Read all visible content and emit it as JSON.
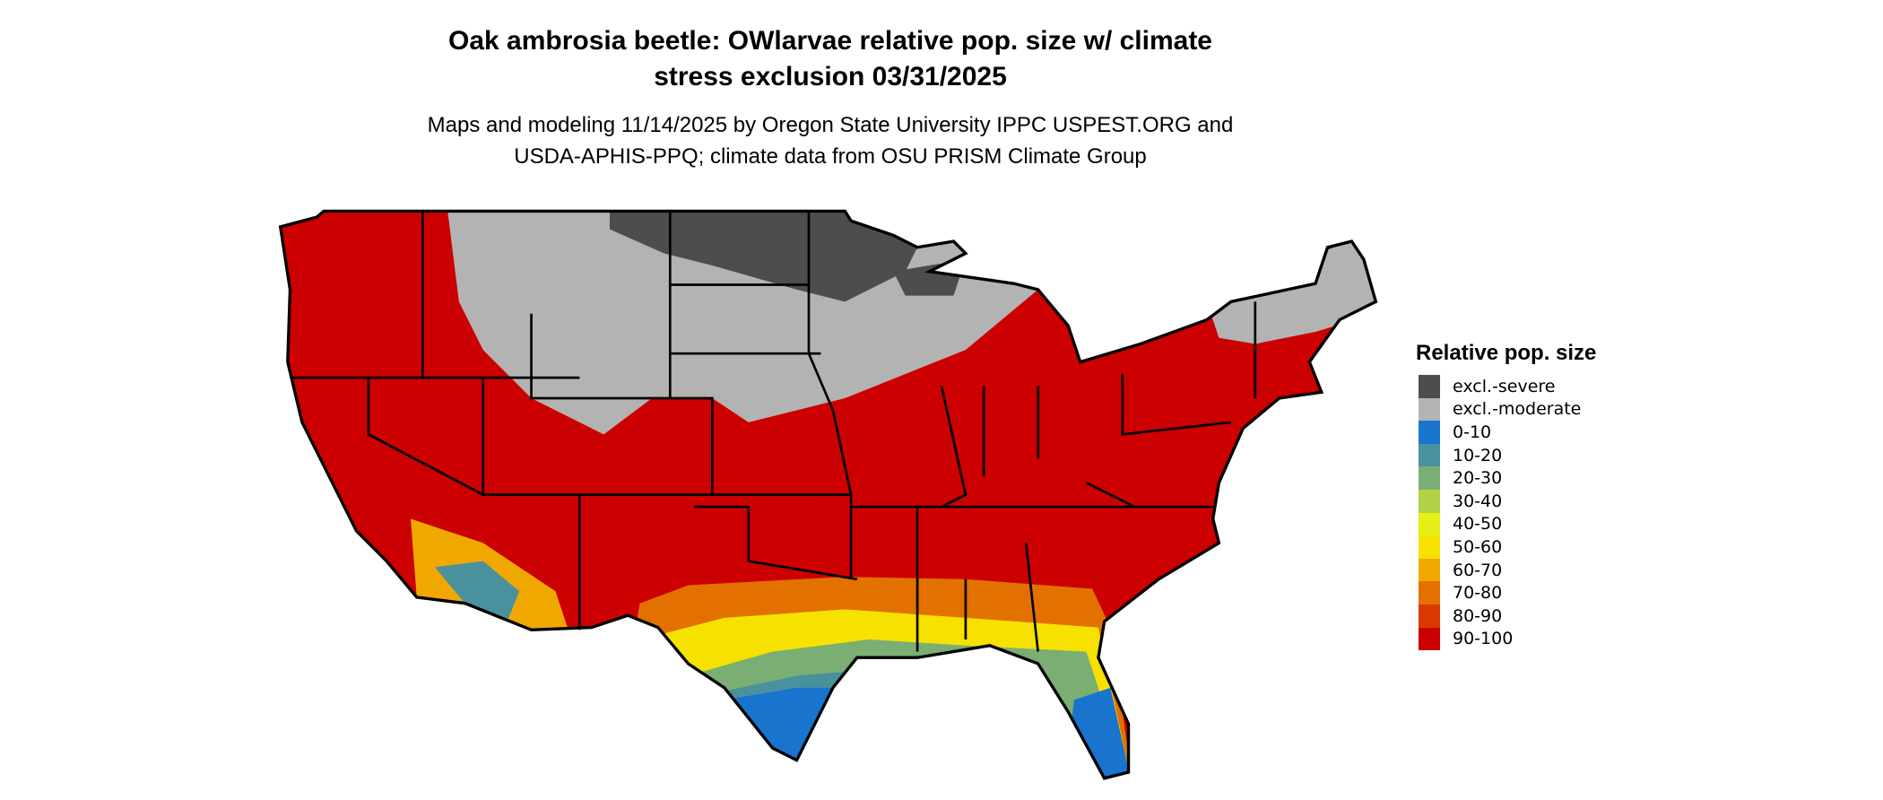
{
  "title": {
    "line1": "Oak ambrosia beetle: OWlarvae relative pop. size w/ climate",
    "line2": "stress exclusion 03/31/2025"
  },
  "subtitle": {
    "line1": "Maps and modeling 11/14/2025 by Oregon State University IPPC USPEST.ORG and",
    "line2": "USDA-APHIS-PPQ; climate data from OSU PRISM Climate Group"
  },
  "legend": {
    "title": "Relative pop. size",
    "items": [
      {
        "label": "excl.-severe",
        "color": "#4d4d4d"
      },
      {
        "label": "excl.-moderate",
        "color": "#b3b3b3"
      },
      {
        "label": "0-10",
        "color": "#1874cd"
      },
      {
        "label": "10-20",
        "color": "#4a919e"
      },
      {
        "label": "20-30",
        "color": "#7aae72"
      },
      {
        "label": "30-40",
        "color": "#b3d145"
      },
      {
        "label": "40-50",
        "color": "#e6f017"
      },
      {
        "label": "50-60",
        "color": "#f7e100"
      },
      {
        "label": "60-70",
        "color": "#f0a800"
      },
      {
        "label": "70-80",
        "color": "#e37100"
      },
      {
        "label": "80-90",
        "color": "#d93800"
      },
      {
        "label": "90-100",
        "color": "#cc0000"
      }
    ]
  }
}
